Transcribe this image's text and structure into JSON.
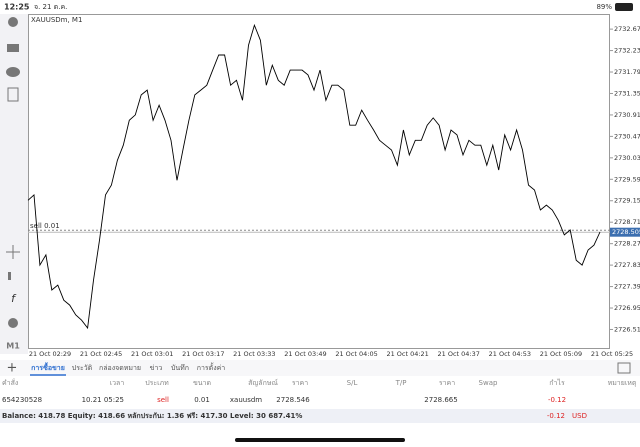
{
  "status": {
    "time": "12:25",
    "date": "จ. 21 ต.ค.",
    "battery": "89%"
  },
  "chart": {
    "type": "line",
    "symbol": "XAUUSDm, M1",
    "color": "#000000",
    "values": [
      2729.16,
      2729.27,
      2727.83,
      2728.04,
      2727.32,
      2727.42,
      2727.11,
      2727.01,
      2726.81,
      2726.7,
      2726.54,
      2727.52,
      2728.34,
      2729.27,
      2729.47,
      2729.98,
      2730.29,
      2730.8,
      2730.91,
      2731.32,
      2731.42,
      2730.8,
      2731.11,
      2730.8,
      2730.39,
      2729.57,
      2730.19,
      2730.8,
      2731.32,
      2731.42,
      2731.52,
      2731.83,
      2732.14,
      2732.14,
      2731.52,
      2731.62,
      2731.21,
      2732.34,
      2732.75,
      2732.44,
      2731.52,
      2731.93,
      2731.62,
      2731.52,
      2731.83,
      2731.83,
      2731.83,
      2731.73,
      2731.42,
      2731.83,
      2731.21,
      2731.52,
      2731.52,
      2731.42,
      2730.7,
      2730.7,
      2731.01,
      2730.8,
      2730.6,
      2730.39,
      2730.29,
      2730.19,
      2729.88,
      2730.6,
      2730.09,
      2730.39,
      2730.39,
      2730.7,
      2730.85,
      2730.7,
      2730.19,
      2730.6,
      2730.5,
      2730.09,
      2730.39,
      2730.29,
      2730.29,
      2729.88,
      2730.29,
      2729.78,
      2730.5,
      2730.19,
      2730.6,
      2730.19,
      2729.47,
      2729.37,
      2728.96,
      2729.06,
      2728.96,
      2728.75,
      2728.45,
      2728.55,
      2727.93,
      2727.83,
      2728.14,
      2728.24,
      2728.51
    ],
    "ylim": [
      2726.13,
      2732.98
    ],
    "yticks": [
      {
        "value": 2732.67,
        "label": "2732.670"
      },
      {
        "value": 2732.23,
        "label": "2732.230"
      },
      {
        "value": 2731.79,
        "label": "2731.790"
      },
      {
        "value": 2731.35,
        "label": "2731.350"
      },
      {
        "value": 2730.91,
        "label": "2730.910"
      },
      {
        "value": 2730.47,
        "label": "2730.470"
      },
      {
        "value": 2730.03,
        "label": "2730.030"
      },
      {
        "value": 2729.59,
        "label": "2729.590"
      },
      {
        "value": 2729.15,
        "label": "2729.150"
      },
      {
        "value": 2728.71,
        "label": "2728.710"
      },
      {
        "value": 2728.27,
        "label": "2728.270"
      },
      {
        "value": 2727.83,
        "label": "2727.830"
      },
      {
        "value": 2727.39,
        "label": "2727.390"
      },
      {
        "value": 2726.95,
        "label": "2726.950"
      },
      {
        "value": 2726.51,
        "label": "2726.510"
      }
    ],
    "current_price": {
      "value": 2728.505,
      "label": "2728.505"
    },
    "order_line": {
      "value": 2728.546,
      "label": "sell 0.01"
    },
    "xticks": [
      "21 Oct 02:29",
      "21 Oct 02:45",
      "21 Oct 03:01",
      "21 Oct 03:17",
      "21 Oct 03:33",
      "21 Oct 03:49",
      "21 Oct 04:05",
      "21 Oct 04:21",
      "21 Oct 04:37",
      "21 Oct 04:53",
      "21 Oct 05:09",
      "21 Oct 05:25"
    ]
  },
  "tabs": [
    "การซื้อขาย",
    "ประวัติ",
    "กล่องจดหมาย",
    "ข่าว",
    "บันทึก",
    "การตั้งค่า"
  ],
  "columns": [
    "คำสั่ง",
    "เวลา",
    "ประเภท",
    "ขนาด",
    "สัญลักษณ์",
    "ราคา",
    "S/L",
    "T/P",
    "ราคา",
    "Swap",
    "กำไร",
    "หมายเหตุ"
  ],
  "row": {
    "order": "654230528",
    "time": "10.21 05:25",
    "type": "sell",
    "size": "0.01",
    "symbol": "xauusdm",
    "open_price": "2728.546",
    "price": "2728.665",
    "profit": "-0.12"
  },
  "balance": {
    "text": "Balance: 418.78 Equity: 418.66 หลักประกัน: 1.36 ฟรี: 417.30 Level: 30 687.41%",
    "profit": "-0.12",
    "currency": "USD"
  },
  "left_tool": "M1"
}
